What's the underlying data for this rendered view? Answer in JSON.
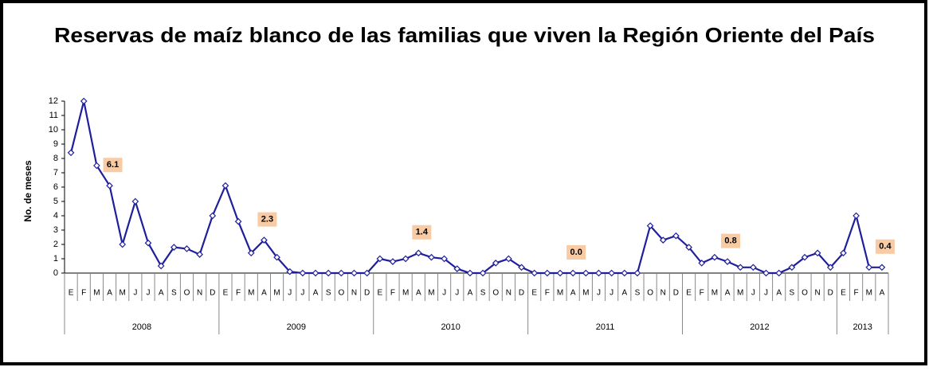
{
  "chart_data": {
    "type": "line",
    "title": "Reservas de maíz blanco de las familias que viven  la Región Oriente del País",
    "y_label": "No. de meses",
    "groups": [
      {
        "label": "2008",
        "categories": [
          "E",
          "F",
          "M",
          "A",
          "M",
          "J",
          "J",
          "A",
          "S",
          "O",
          "N",
          "D"
        ]
      },
      {
        "label": "2009",
        "categories": [
          "E",
          "F",
          "M",
          "A",
          "M",
          "J",
          "J",
          "A",
          "S",
          "O",
          "N",
          "D"
        ]
      },
      {
        "label": "2010",
        "categories": [
          "E",
          "F",
          "M",
          "A",
          "M",
          "J",
          "J",
          "A",
          "S",
          "O",
          "N",
          "D"
        ]
      },
      {
        "label": "2011",
        "categories": [
          "E",
          "F",
          "M",
          "A",
          "M",
          "J",
          "J",
          "A",
          "S",
          "O",
          "N",
          "D"
        ]
      },
      {
        "label": "2012",
        "categories": [
          "E",
          "F",
          "M",
          "A",
          "M",
          "J",
          "J",
          "A",
          "S",
          "O",
          "N",
          "D"
        ]
      },
      {
        "label": "2013",
        "categories": [
          "E",
          "F",
          "M",
          "A"
        ]
      }
    ],
    "values": [
      8.4,
      12,
      7.5,
      6.1,
      2.0,
      5.0,
      2.1,
      0.5,
      1.8,
      1.7,
      1.3,
      4.0,
      6.1,
      3.6,
      1.4,
      2.3,
      1.1,
      0.1,
      0,
      0,
      0,
      0,
      0,
      0,
      1.0,
      0.8,
      1.0,
      1.4,
      1.1,
      1.0,
      0.3,
      0,
      0,
      0.7,
      1.0,
      0.4,
      0,
      0,
      0,
      0,
      0,
      0,
      0,
      0,
      0,
      3.3,
      2.3,
      2.6,
      1.8,
      0.7,
      1.1,
      0.8,
      0.4,
      0.4,
      0,
      0,
      0.4,
      1.1,
      1.4,
      0.4,
      1.4,
      4.0,
      0.4,
      0.4
    ],
    "value_labels": [
      null,
      null,
      null,
      "6.1",
      null,
      null,
      null,
      null,
      null,
      null,
      null,
      null,
      null,
      null,
      null,
      "2.3",
      null,
      null,
      null,
      null,
      null,
      null,
      null,
      null,
      null,
      null,
      null,
      "1.4",
      null,
      null,
      null,
      null,
      null,
      null,
      null,
      null,
      null,
      null,
      null,
      "0.0",
      null,
      null,
      null,
      null,
      null,
      null,
      null,
      null,
      null,
      null,
      null,
      "0.8",
      null,
      null,
      null,
      null,
      null,
      null,
      null,
      null,
      null,
      null,
      null,
      "0.4"
    ],
    "color": "#1f1f9e",
    "label_color": "#f8cba4",
    "ylim": [
      0,
      12
    ],
    "yticks": [
      0,
      1,
      2,
      3,
      4,
      5,
      6,
      7,
      8,
      9,
      10,
      11,
      12
    ]
  }
}
